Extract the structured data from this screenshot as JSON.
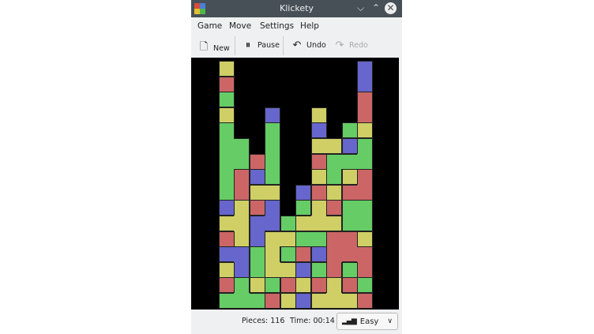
{
  "window": {
    "title": "Klickety"
  },
  "menu": [
    "Game",
    "Move",
    "Settings",
    "Help"
  ],
  "toolbar": {
    "new": "New",
    "pause": "Pause",
    "undo": "Undo",
    "redo": "Redo"
  },
  "colors": {
    "Y": "#cfcf66",
    "R": "#cc6666",
    "G": "#66cc66",
    "B": "#6666cc"
  },
  "board": {
    "columns": 10,
    "rows": 16,
    "grid": [
      "Y........B",
      "R........B",
      "G........R",
      "Y..B..Y..R",
      "G..G..B.GY",
      "GG.G..YYBG",
      "GGRG..RGGG",
      "GRBG..YGYR",
      "GRYY.BRYRR",
      "BYRB.GYRGG",
      "YYBBGYYYGG",
      "RYBYYGGRRY",
      "BBGYGRBRRR",
      "YBGYYBGRGR",
      "RGYGRYRYRG",
      "GGGRYBYYYR"
    ]
  },
  "status": {
    "pieces": "Pieces: 116",
    "time": "Time: 00:14",
    "difficulty": "Easy"
  }
}
